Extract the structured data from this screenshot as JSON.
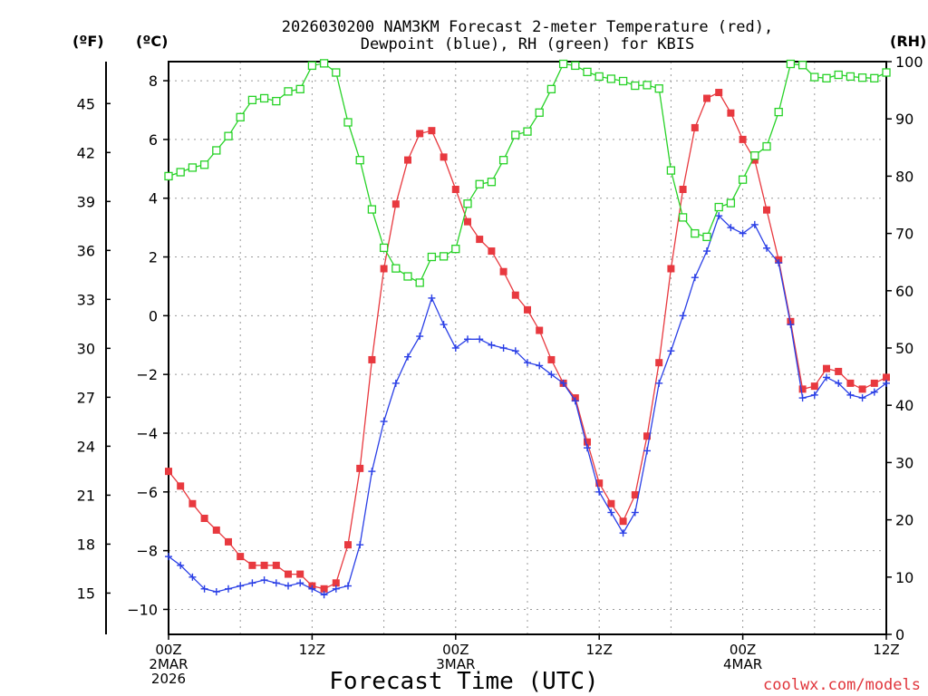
{
  "chart_data": {
    "type": "line",
    "title_line1": "2026030200 NAM3KM Forecast 2-meter Temperature (red),",
    "title_line2": "Dewpoint (blue), RH (green) for KBIS",
    "xlabel": "Forecast Time (UTC)",
    "credit": "coolwx.com/models",
    "units": {
      "fahrenheit": "(ºF)",
      "celsius": "(ºC)",
      "rh": "(RH)"
    },
    "xlim": [
      0,
      60
    ],
    "ylim_c": [
      -10.85,
      8.65
    ],
    "ylim_rh": [
      0,
      100
    ],
    "x_ticks": [
      {
        "x": 0,
        "lines": [
          "00Z",
          "2MAR",
          "2026"
        ]
      },
      {
        "x": 12,
        "lines": [
          "12Z"
        ]
      },
      {
        "x": 24,
        "lines": [
          "00Z",
          "3MAR"
        ]
      },
      {
        "x": 36,
        "lines": [
          "12Z"
        ]
      },
      {
        "x": 48,
        "lines": [
          "00Z",
          "4MAR"
        ]
      },
      {
        "x": 60,
        "lines": [
          "12Z"
        ]
      }
    ],
    "y_ticks_c": [
      8,
      6,
      4,
      2,
      0,
      -2,
      -4,
      -6,
      -8,
      -10
    ],
    "y_ticks_f": [
      45,
      42,
      39,
      36,
      33,
      30,
      27,
      24,
      21,
      18,
      15
    ],
    "y_ticks_rh": [
      100,
      90,
      80,
      70,
      60,
      50,
      40,
      30,
      20,
      10,
      0
    ],
    "grid": true,
    "colors": {
      "temperature": "#e8393f",
      "dewpoint": "#2a3fe6",
      "rh": "#27d227"
    },
    "series": [
      {
        "name": "Temperature",
        "units": "C",
        "x": [
          0,
          1,
          2,
          3,
          4,
          5,
          6,
          7,
          8,
          9,
          10,
          11,
          12,
          13,
          14,
          15,
          16,
          17,
          18,
          19,
          20,
          21,
          22,
          23,
          24,
          25,
          26,
          27,
          28,
          29,
          30,
          31,
          32,
          33,
          34,
          35,
          36,
          37,
          38,
          39,
          40,
          41,
          42,
          43,
          44,
          45,
          46,
          47,
          48,
          49,
          50,
          51,
          52,
          53,
          54,
          55,
          56,
          57,
          58,
          59,
          60
        ],
        "values": [
          -5.3,
          -5.8,
          -6.4,
          -6.9,
          -7.3,
          -7.7,
          -8.2,
          -8.5,
          -8.5,
          -8.5,
          -8.8,
          -8.8,
          -9.2,
          -9.3,
          -9.1,
          -7.8,
          -5.2,
          -1.5,
          1.6,
          3.8,
          5.3,
          6.2,
          6.3,
          5.4,
          4.3,
          3.2,
          2.6,
          2.2,
          1.5,
          0.7,
          0.2,
          -0.5,
          -1.5,
          -2.3,
          -2.8,
          -4.3,
          -5.7,
          -6.4,
          -7.0,
          -6.1,
          -4.1,
          -1.6,
          1.6,
          4.3,
          6.4,
          7.4,
          7.6,
          6.9,
          6.0,
          5.3,
          3.6,
          1.9,
          -0.2,
          -2.5,
          -2.4,
          -1.8,
          -1.9,
          -2.3,
          -2.5,
          -2.3,
          -2.1
        ]
      },
      {
        "name": "Dewpoint",
        "units": "C",
        "x": [
          0,
          1,
          2,
          3,
          4,
          5,
          6,
          7,
          8,
          9,
          10,
          11,
          12,
          13,
          14,
          15,
          16,
          17,
          18,
          19,
          20,
          21,
          22,
          23,
          24,
          25,
          26,
          27,
          28,
          29,
          30,
          31,
          32,
          33,
          34,
          35,
          36,
          37,
          38,
          39,
          40,
          41,
          42,
          43,
          44,
          45,
          46,
          47,
          48,
          49,
          50,
          51,
          52,
          53,
          54,
          55,
          56,
          57,
          58,
          59,
          60
        ],
        "values": [
          -8.2,
          -8.5,
          -8.9,
          -9.3,
          -9.4,
          -9.3,
          -9.2,
          -9.1,
          -9.0,
          -9.1,
          -9.2,
          -9.1,
          -9.3,
          -9.5,
          -9.3,
          -9.2,
          -7.8,
          -5.3,
          -3.6,
          -2.3,
          -1.4,
          -0.7,
          0.6,
          -0.3,
          -1.1,
          -0.8,
          -0.8,
          -1.0,
          -1.1,
          -1.2,
          -1.6,
          -1.7,
          -2.0,
          -2.3,
          -2.9,
          -4.5,
          -6.0,
          -6.7,
          -7.4,
          -6.7,
          -4.6,
          -2.3,
          -1.2,
          -0.0,
          1.3,
          2.2,
          3.4,
          3.0,
          2.8,
          3.1,
          2.3,
          1.8,
          -0.3,
          -2.8,
          -2.7,
          -2.1,
          -2.3,
          -2.7,
          -2.8,
          -2.6,
          -2.3
        ]
      },
      {
        "name": "RH",
        "units": "%",
        "x": [
          0,
          1,
          2,
          3,
          4,
          5,
          6,
          7,
          8,
          9,
          10,
          11,
          12,
          13,
          14,
          15,
          16,
          17,
          18,
          19,
          20,
          21,
          22,
          23,
          24,
          25,
          26,
          27,
          28,
          29,
          30,
          31,
          32,
          33,
          34,
          35,
          36,
          37,
          38,
          39,
          40,
          41,
          42,
          43,
          44,
          45,
          46,
          47,
          48,
          49,
          50,
          51,
          52,
          53,
          54,
          55,
          56,
          57,
          58,
          59,
          60
        ],
        "values": [
          80,
          80.7,
          81.5,
          82,
          84.5,
          87,
          90.3,
          93.3,
          93.6,
          93.1,
          94.8,
          95.2,
          99.3,
          99.7,
          98.1,
          89.4,
          82.8,
          74.2,
          67.5,
          63.9,
          62.5,
          61.4,
          65.9,
          66,
          67.3,
          75.2,
          78.6,
          79,
          82.8,
          87.2,
          87.8,
          91.1,
          95.2,
          99.6,
          99.3,
          98.2,
          97.4,
          97,
          96.6,
          95.8,
          95.9,
          95.3,
          81,
          72.8,
          70,
          69.4,
          74.6,
          75.3,
          79.4,
          83.6,
          85.2,
          91.2,
          99.6,
          99.4,
          97.3,
          97.1,
          97.7,
          97.4,
          97.2,
          97.1,
          98.1
        ]
      }
    ]
  }
}
